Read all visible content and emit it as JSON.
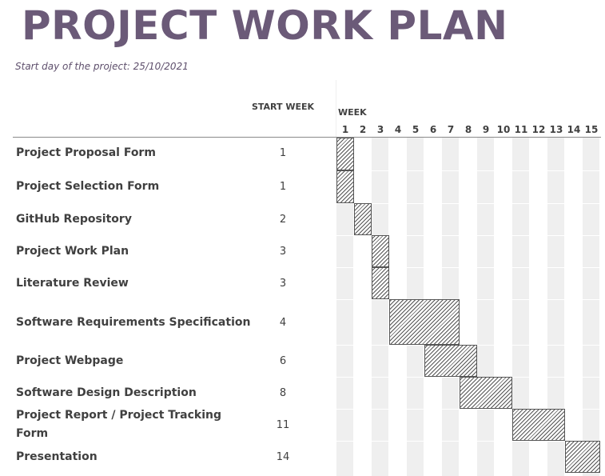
{
  "title": "PROJECT WORK PLAN",
  "subtitle": "Start day of the project: 25/10/2021",
  "headers": {
    "start_week": "START WEEK",
    "week": "WEEK"
  },
  "weeks": [
    "1",
    "2",
    "3",
    "4",
    "5",
    "6",
    "7",
    "8",
    "9",
    "10",
    "11",
    "12",
    "13",
    "14",
    "15"
  ],
  "shaded_weeks": [
    1,
    3,
    5,
    7,
    9,
    11,
    13,
    15
  ],
  "colors": {
    "title": "#6b5a78",
    "bar_hatch": "#555555",
    "column_shade": "#efefef"
  },
  "tasks": [
    {
      "name": "Project Proposal Form",
      "start_week": "1",
      "start": 1,
      "duration": 1
    },
    {
      "name": "Project Selection Form",
      "start_week": "1",
      "start": 1,
      "duration": 1
    },
    {
      "name": "GitHub Repository",
      "start_week": "2",
      "start": 2,
      "duration": 1
    },
    {
      "name": "Project Work Plan",
      "start_week": "3",
      "start": 3,
      "duration": 1
    },
    {
      "name": "Literature Review",
      "start_week": "3",
      "start": 3,
      "duration": 1
    },
    {
      "name": "Software Requirements Specification",
      "start_week": "4",
      "start": 4,
      "duration": 4
    },
    {
      "name": "Project Webpage",
      "start_week": "6",
      "start": 6,
      "duration": 3
    },
    {
      "name": "Software Design Description",
      "start_week": "8",
      "start": 8,
      "duration": 3
    },
    {
      "name": "Project Report / Project Tracking",
      "name_line2": "Form",
      "start_week": "11",
      "start": 11,
      "duration": 3
    },
    {
      "name": "Presentation",
      "start_week": "14",
      "start": 14,
      "duration": 2
    }
  ]
}
